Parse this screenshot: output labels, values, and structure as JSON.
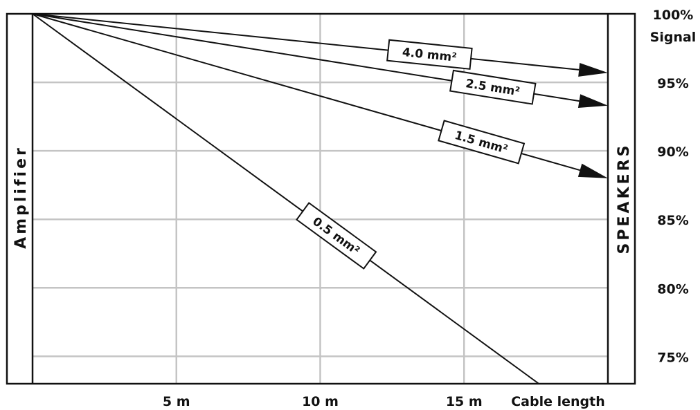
{
  "chart_data": {
    "type": "line",
    "xlabel": "Cable length",
    "ylabel": "Signal",
    "left_label": "Amplifier",
    "right_label": "SPEAKERS",
    "x_ticks": [
      "5 m",
      "10 m",
      "15 m"
    ],
    "y_ticks": [
      "100%",
      "95%",
      "90%",
      "85%",
      "80%",
      "75%"
    ],
    "xlim": [
      0,
      20
    ],
    "ylim": [
      73,
      100
    ],
    "grid": true,
    "series": [
      {
        "name": "4.0 mm²",
        "x": [
          0,
          20
        ],
        "y": [
          100,
          95.7
        ]
      },
      {
        "name": "2.5 mm²",
        "x": [
          0,
          20
        ],
        "y": [
          100,
          93.3
        ]
      },
      {
        "name": "1.5 mm²",
        "x": [
          0,
          20
        ],
        "y": [
          100,
          88.0
        ]
      },
      {
        "name": "0.5 mm²",
        "x": [
          0,
          17.6
        ],
        "y": [
          100,
          73
        ]
      }
    ]
  }
}
